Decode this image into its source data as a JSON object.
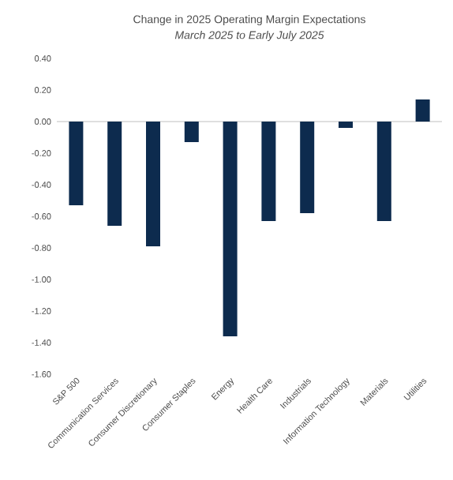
{
  "chart_data": {
    "type": "bar",
    "title": "Change in 2025 Operating Margin Expectations",
    "subtitle": "March 2025 to Early July 2025",
    "categories": [
      "S&P 500",
      "Communication Services",
      "Consumer Discretionary",
      "Consumer Staples",
      "Energy",
      "Health Care",
      "Industrials",
      "Information Technology",
      "Materials",
      "Utilities"
    ],
    "values": [
      -0.53,
      -0.66,
      -0.79,
      -0.13,
      -1.36,
      -0.63,
      -0.58,
      -0.04,
      -0.63,
      0.14
    ],
    "color": "#0d2b4e",
    "ylim": [
      -1.6,
      0.4
    ],
    "yticks": [
      {
        "value": 0.4,
        "label": "0.40"
      },
      {
        "value": 0.2,
        "label": "0.20"
      },
      {
        "value": 0,
        "label": "0.00"
      },
      {
        "value": -0.2,
        "label": "-0.20"
      },
      {
        "value": -0.4,
        "label": "-0.40"
      },
      {
        "value": -0.6,
        "label": "-0.60"
      },
      {
        "value": -0.8,
        "label": "-0.80"
      },
      {
        "value": -1.0,
        "label": "-1.00"
      },
      {
        "value": -1.2,
        "label": "-1.20"
      },
      {
        "value": -1.4,
        "label": "-1.40"
      },
      {
        "value": -1.6,
        "label": "-1.60"
      }
    ]
  }
}
